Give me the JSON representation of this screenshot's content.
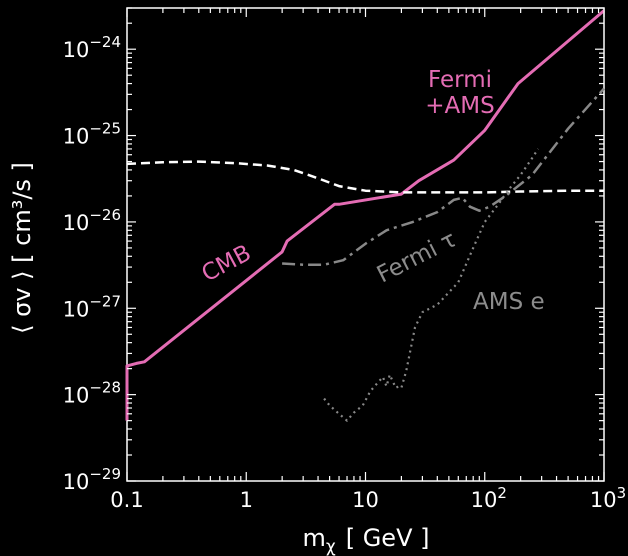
{
  "chart_data": {
    "type": "line",
    "xlabel_main": "m",
    "xlabel_sub": "χ",
    "xlabel_unit": "[ GeV ]",
    "ylabel": "⟨ σv ⟩ [ cm³/s ]",
    "xscale": "log",
    "yscale": "log",
    "xlim": [
      0.1,
      1000
    ],
    "ylim": [
      1e-29,
      3e-24
    ],
    "grid": false,
    "x_ticks": [
      {
        "value": 0.1,
        "label": "0.1"
      },
      {
        "value": 1,
        "label": "1"
      },
      {
        "value": 10,
        "label": "10"
      },
      {
        "value": 100,
        "label": "10",
        "sup": "2"
      },
      {
        "value": 1000,
        "label": "10",
        "sup": "3"
      }
    ],
    "y_ticks": [
      {
        "value": 1e-29,
        "label": "10",
        "sup": "−29"
      },
      {
        "value": 1e-28,
        "label": "10",
        "sup": "−28"
      },
      {
        "value": 1e-27,
        "label": "10",
        "sup": "−27"
      },
      {
        "value": 1e-26,
        "label": "10",
        "sup": "−26"
      },
      {
        "value": 1e-25,
        "label": "10",
        "sup": "−25"
      },
      {
        "value": 1e-24,
        "label": "10",
        "sup": "−24"
      }
    ],
    "series": [
      {
        "color": "#e46cb4",
        "style": "solid",
        "x": [
          0.1,
          0.1,
          0.1,
          0.1,
          0.12,
          0.14,
          2.0,
          2.2,
          5.5,
          6.0,
          20,
          28,
          55,
          100,
          190,
          1000
        ],
        "y": [
          5e-29,
          2.1e-28,
          2.1e-28,
          2.15e-28,
          2.3e-28,
          2.4e-28,
          4.5e-27,
          6e-27,
          1.6e-26,
          1.6e-26,
          2.1e-26,
          3e-26,
          5.2e-26,
          1.15e-25,
          4e-25,
          2.8e-24
        ]
      },
      {
        "color": "#ffffff",
        "style": "dashed",
        "x": [
          0.1,
          0.2,
          0.4,
          0.8,
          1.5,
          2.5,
          4,
          6,
          10,
          20,
          50,
          100,
          200,
          500,
          1000
        ],
        "y": [
          4.7e-26,
          4.9e-26,
          5e-26,
          4.8e-26,
          4.5e-26,
          4e-26,
          3.2e-26,
          2.6e-26,
          2.3e-26,
          2.2e-26,
          2.2e-26,
          2.2e-26,
          2.25e-26,
          2.3e-26,
          2.3e-26
        ]
      },
      {
        "color": "#888888",
        "style": "dashdot",
        "x": [
          2.0,
          3.0,
          4.5,
          6.5,
          10,
          15,
          25,
          40,
          55,
          65,
          75,
          90,
          110,
          150,
          250,
          500,
          1000
        ],
        "y": [
          3.3e-27,
          3.2e-27,
          3.2e-27,
          3.6e-27,
          5.6e-27,
          8e-27,
          1e-26,
          1.3e-26,
          1.8e-26,
          1.9e-26,
          1.5e-26,
          1.35e-26,
          1.5e-26,
          2e-26,
          3.5e-26,
          1.2e-25,
          3.5e-25
        ]
      },
      {
        "color": "#888888",
        "style": "dotted",
        "x": [
          4.5,
          5.0,
          6.0,
          7.0,
          8.0,
          9.5,
          11,
          12.5,
          14,
          15,
          16,
          17,
          18,
          19,
          20,
          22,
          26,
          30,
          40,
          60,
          80,
          100,
          130,
          160,
          200,
          250,
          280
        ],
        "y": [
          9e-29,
          7.5e-29,
          6e-29,
          5e-29,
          6.2e-29,
          7.5e-29,
          1.1e-28,
          1.35e-28,
          1.6e-28,
          1.25e-28,
          1.7e-28,
          1.4e-28,
          1.2e-28,
          1.25e-28,
          1.2e-28,
          1.9e-28,
          6e-28,
          9e-28,
          1.1e-27,
          2e-27,
          5e-27,
          1e-26,
          1.6e-26,
          2.4e-26,
          3.5e-26,
          5.5e-26,
          7e-26
        ]
      }
    ],
    "annotations": [
      {
        "text": "CMB",
        "color": "#e46cb4"
      },
      {
        "text": "Fermi",
        "color": "#e46cb4"
      },
      {
        "text": "+AMS",
        "color": "#e46cb4"
      },
      {
        "text": "Fermi τ",
        "color": "#8c8c8c"
      },
      {
        "text": "AMS e",
        "color": "#8c8c8c"
      }
    ]
  }
}
